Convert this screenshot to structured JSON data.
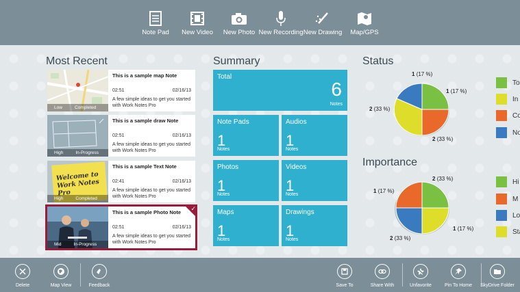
{
  "top_bar": {
    "buttons": [
      {
        "label": "Note Pad",
        "icon": "notepad-icon"
      },
      {
        "label": "New Video",
        "icon": "film-icon"
      },
      {
        "label": "New Photo",
        "icon": "camera-icon"
      },
      {
        "label": "New Recording",
        "icon": "microphone-icon"
      },
      {
        "label": "New Drawing",
        "icon": "pencil-icon"
      },
      {
        "label": "Map/GPS",
        "icon": "map-icon"
      }
    ]
  },
  "most_recent": {
    "title": "Most Recent",
    "notes": [
      {
        "title": "This is a sample map Note",
        "time": "02:51",
        "date": "02/16/13",
        "desc": "A few simple ideas to get you started with Work Notes Pro",
        "tag1": "Low",
        "tag2": "Completed"
      },
      {
        "title": "This is a sample draw Note",
        "time": "02:51",
        "date": "02/16/13",
        "desc": "A few simple ideas to get you started with Work Notes Pro",
        "tag1": "High",
        "tag2": "In-Progress"
      },
      {
        "title": "This is a sample Text Note",
        "time": "02:41",
        "date": "02/16/13",
        "desc": "A few simple ideas to get you started with Work Notes Pro",
        "tag1": "High",
        "tag2": "Completed",
        "sticky_text": "Welcome to Work Notes Pro"
      },
      {
        "title": "This is a sample Photo Note",
        "time": "02:51",
        "date": "02/16/13",
        "desc": "A few simple ideas to get you started with Work Notes Pro",
        "tag1": "Mid",
        "tag2": "In-Progress",
        "selected": true
      }
    ]
  },
  "summary": {
    "title": "Summary",
    "total": {
      "label": "Total",
      "count": "6",
      "unit": "Notes"
    },
    "tiles": [
      {
        "label": "Note Pads",
        "count": "1",
        "unit": "Notes"
      },
      {
        "label": "Audios",
        "count": "1",
        "unit": "Notes"
      },
      {
        "label": "Photos",
        "count": "1",
        "unit": "Notes"
      },
      {
        "label": "Videos",
        "count": "1",
        "unit": "Notes"
      },
      {
        "label": "Maps",
        "count": "1",
        "unit": "Notes"
      },
      {
        "label": "Drawings",
        "count": "1",
        "unit": "Notes"
      }
    ]
  },
  "status": {
    "title": "Status",
    "labels": {
      "a": "1",
      "a_pct": "(17 %)",
      "b": "1",
      "b_pct": "(17 %)",
      "c": "2",
      "c_pct": "(33 %)",
      "d": "2",
      "d_pct": "(33 %)"
    },
    "legend": [
      {
        "label": "To",
        "color": "#7ac143"
      },
      {
        "label": "In",
        "color": "#dede2a"
      },
      {
        "label": "Co",
        "color": "#e8692a"
      },
      {
        "label": "No",
        "color": "#3a7bbf"
      }
    ]
  },
  "importance": {
    "title": "Importance",
    "labels": {
      "a": "2",
      "a_pct": "(33 %)",
      "b": "1",
      "b_pct": "(17 %)",
      "c": "1",
      "c_pct": "(17 %)",
      "d": "2",
      "d_pct": "(33 %)"
    },
    "legend": [
      {
        "label": "Hi",
        "color": "#7ac143"
      },
      {
        "label": "M",
        "color": "#e8692a"
      },
      {
        "label": "Lo",
        "color": "#3a7bbf"
      },
      {
        "label": "Sta",
        "color": "#dede2a"
      }
    ]
  },
  "bottom_bar": {
    "left": [
      {
        "label": "Delete",
        "icon": "close-icon"
      },
      {
        "label": "Map View",
        "icon": "globe-icon"
      },
      {
        "label": "Feedback",
        "icon": "feedback-icon"
      }
    ],
    "right": [
      {
        "label": "Save To",
        "icon": "save-icon"
      },
      {
        "label": "Share With",
        "icon": "link-icon"
      },
      {
        "label": "Unfavorite",
        "icon": "unfavorite-icon"
      },
      {
        "label": "Pin To Home",
        "icon": "pin-icon"
      },
      {
        "label": "SkyDrive Folder",
        "icon": "folder-icon"
      }
    ]
  }
}
